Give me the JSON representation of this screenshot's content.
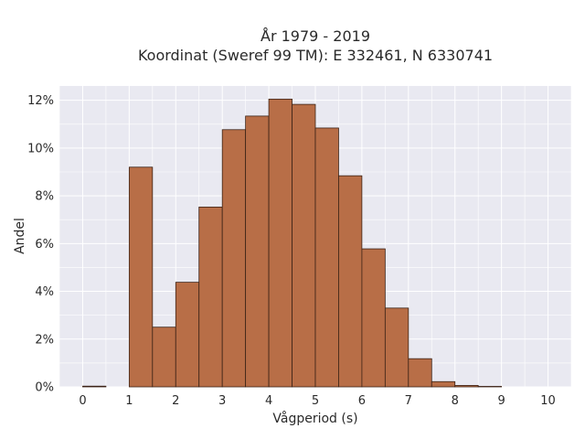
{
  "chart_data": {
    "type": "bar",
    "title_line1": "År 1979 - 2019",
    "title_line2": "Koordinat (Sweref 99 TM): E 332461, N 6330741",
    "xlabel": "Vågperiod (s)",
    "ylabel": "Andel",
    "bin_width": 0.5,
    "bins": [
      {
        "x": 0.0,
        "value": 0.03
      },
      {
        "x": 0.5,
        "value": 0.0
      },
      {
        "x": 1.0,
        "value": 9.2
      },
      {
        "x": 1.5,
        "value": 2.5
      },
      {
        "x": 2.0,
        "value": 4.38
      },
      {
        "x": 2.5,
        "value": 7.53
      },
      {
        "x": 3.0,
        "value": 10.77
      },
      {
        "x": 3.5,
        "value": 11.34
      },
      {
        "x": 4.0,
        "value": 12.05
      },
      {
        "x": 4.5,
        "value": 11.83
      },
      {
        "x": 5.0,
        "value": 10.84
      },
      {
        "x": 5.5,
        "value": 8.84
      },
      {
        "x": 6.0,
        "value": 5.78
      },
      {
        "x": 6.5,
        "value": 3.3
      },
      {
        "x": 7.0,
        "value": 1.18
      },
      {
        "x": 7.5,
        "value": 0.22
      },
      {
        "x": 8.0,
        "value": 0.06
      },
      {
        "x": 8.5,
        "value": 0.02
      }
    ],
    "xlim": [
      -0.5,
      10.5
    ],
    "ylim": [
      0,
      12.6
    ],
    "x_ticks": [
      "0",
      "1",
      "2",
      "3",
      "4",
      "5",
      "6",
      "7",
      "8",
      "9",
      "10"
    ],
    "y_ticks": [
      {
        "value": 0,
        "label": "0%"
      },
      {
        "value": 2,
        "label": "2%"
      },
      {
        "value": 4,
        "label": "4%"
      },
      {
        "value": 6,
        "label": "6%"
      },
      {
        "value": 8,
        "label": "8%"
      },
      {
        "value": 10,
        "label": "10%"
      },
      {
        "value": 12,
        "label": "12%"
      }
    ],
    "grid": true,
    "colors": {
      "bar_fill": "#b86e47",
      "bar_stroke": "#3b2216",
      "plot_bg": "#e9e9f1",
      "grid": "#ffffff"
    }
  }
}
